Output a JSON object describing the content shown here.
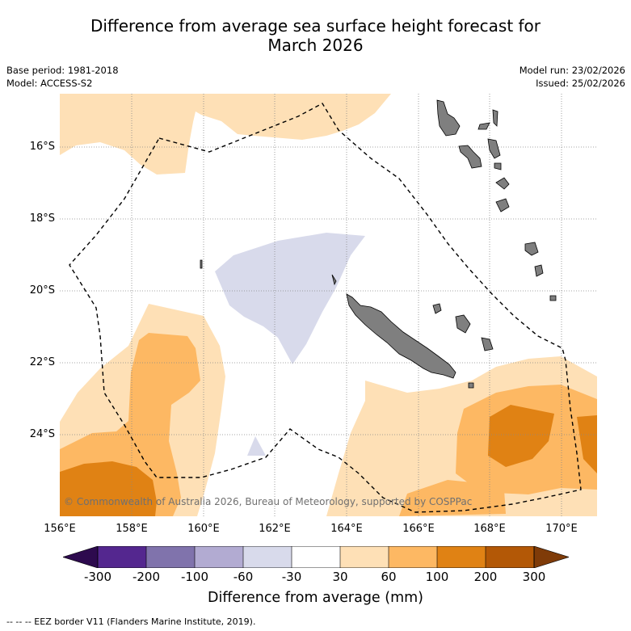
{
  "title": {
    "line1": "Difference from average sea surface height forecast for",
    "line2": "March 2026"
  },
  "meta": {
    "base_period": "Base period: 1981-2018",
    "model": "Model: ACCESS-S2",
    "model_run": "Model run: 23/02/2026",
    "issued": "Issued: 25/02/2026"
  },
  "map": {
    "lat_labels": [
      "16°S",
      "18°S",
      "20°S",
      "22°S",
      "24°S"
    ],
    "lon_labels": [
      "156°E",
      "158°E",
      "160°E",
      "162°E",
      "164°E",
      "166°E",
      "168°E",
      "170°E"
    ],
    "copyright": "© Commonwealth of Australia 2026, Bureau of Meteorology, supported by COSPPac",
    "colors": {
      "land": "#7f7f7f",
      "grid": "#888888",
      "eez": "#000000"
    }
  },
  "colorbar": {
    "label": "Difference from average (mm)",
    "ticks": [
      "-300",
      "-200",
      "-100",
      "-60",
      "-30",
      "30",
      "60",
      "100",
      "200",
      "300"
    ],
    "colors": [
      "#2d0a4e",
      "#54278f",
      "#8073ac",
      "#b2abd2",
      "#d8daeb",
      "#ffffff",
      "#fee0b6",
      "#fdb863",
      "#e08214",
      "#b35806",
      "#7f3b08"
    ]
  },
  "footnote": "--  --  -- EEZ border V11 (Flanders Marine Institute, 2019)."
}
